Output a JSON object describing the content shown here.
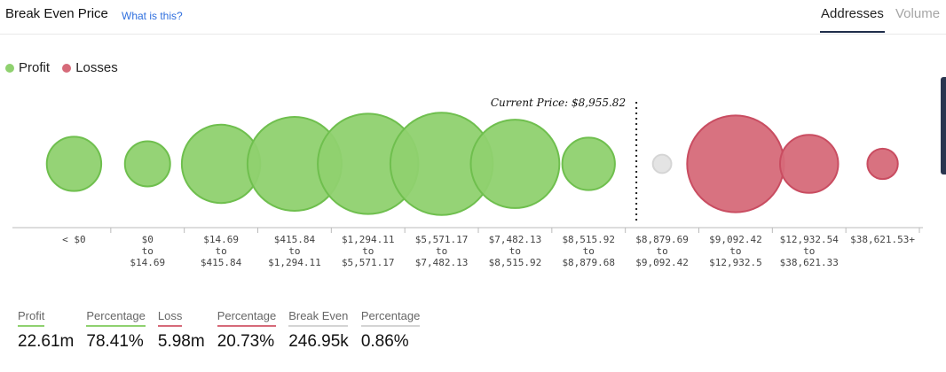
{
  "header": {
    "title": "Break Even Price",
    "help_link": "What is this?",
    "tabs": [
      {
        "label": "Addresses",
        "active": true
      },
      {
        "label": "Volume",
        "active": false
      }
    ]
  },
  "legend": [
    {
      "label": "Profit",
      "color": "#8fd16f"
    },
    {
      "label": "Losses",
      "color": "#d66a79"
    }
  ],
  "chart_data": {
    "type": "bubble",
    "current_price_label": "Current Price: $8,955.82",
    "categories": [
      {
        "line1": "< $0",
        "line2": "",
        "line3": "",
        "status": "profit",
        "size": 0.59
      },
      {
        "line1": "$0",
        "line2": "to",
        "line3": "$14.69",
        "status": "profit",
        "size": 0.49
      },
      {
        "line1": "$14.69",
        "line2": "to",
        "line3": "$415.84",
        "status": "profit",
        "size": 0.85
      },
      {
        "line1": "$415.84",
        "line2": "to",
        "line3": "$1,294.11",
        "status": "profit",
        "size": 1.02
      },
      {
        "line1": "$1,294.11",
        "line2": "to",
        "line3": "$5,571.17",
        "status": "profit",
        "size": 1.09
      },
      {
        "line1": "$5,571.17",
        "line2": "to",
        "line3": "$7,482.13",
        "status": "profit",
        "size": 1.11
      },
      {
        "line1": "$7,482.13",
        "line2": "to",
        "line3": "$8,515.92",
        "status": "profit",
        "size": 0.96
      },
      {
        "line1": "$8,515.92",
        "line2": "to",
        "line3": "$8,879.68",
        "status": "profit",
        "size": 0.57
      },
      {
        "line1": "$8,879.69",
        "line2": "to",
        "line3": "$9,092.42",
        "status": "breakeven",
        "size": 0.2
      },
      {
        "line1": "$9,092.42",
        "line2": "to",
        "line3": "$12,932.5",
        "status": "loss",
        "size": 1.05
      },
      {
        "line1": "$12,932.54",
        "line2": "to",
        "line3": "$38,621.33",
        "status": "loss",
        "size": 0.63
      },
      {
        "line1": "$38,621.53+",
        "line2": "",
        "line3": "",
        "status": "loss",
        "size": 0.33
      }
    ],
    "colors": {
      "profit": "#8fd16f",
      "loss": "#d66a79",
      "breakeven": "#e3e3e3"
    }
  },
  "stats": [
    {
      "label": "Profit",
      "value": "22.61m",
      "color": "#8fd16f"
    },
    {
      "label": "Percentage",
      "value": "78.41%",
      "color": "#8fd16f"
    },
    {
      "label": "Loss",
      "value": "5.98m",
      "color": "#d66a79"
    },
    {
      "label": "Percentage",
      "value": "20.73%",
      "color": "#d66a79"
    },
    {
      "label": "Break Even",
      "value": "246.95k",
      "color": "#d4d4d4"
    },
    {
      "label": "Percentage",
      "value": "0.86%",
      "color": "#d4d4d4"
    }
  ]
}
